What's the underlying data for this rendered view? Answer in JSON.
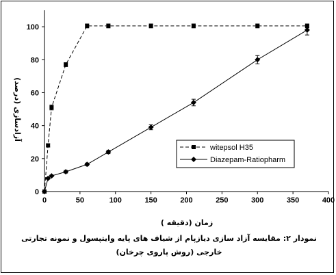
{
  "chart_data": {
    "type": "line",
    "xlabel": "زمان (دقیقه )",
    "ylabel": "آزادسازی (درصد)",
    "xlim": [
      0,
      400
    ],
    "ylim": [
      0,
      110
    ],
    "xticks": [
      0,
      50,
      100,
      150,
      200,
      250,
      300,
      350,
      400
    ],
    "yticks": [
      0,
      20,
      40,
      60,
      80,
      100
    ],
    "grid": false,
    "legend_position": "right",
    "series": [
      {
        "name": "witepsol H35",
        "color": "#000000",
        "line_style": "dashed",
        "marker": "square",
        "x": [
          0,
          5,
          10,
          30,
          60,
          90,
          150,
          210,
          300,
          370
        ],
        "y": [
          0,
          28,
          51,
          77,
          100.5,
          100.5,
          100.5,
          100.5,
          100.5,
          100.5
        ],
        "err": [
          0,
          1,
          1.5,
          1.2,
          1.2,
          1.2,
          1.2,
          1.2,
          1.2,
          1.2
        ]
      },
      {
        "name": "Diazepam-Ratiopharm",
        "color": "#000000",
        "line_style": "solid",
        "marker": "diamond",
        "x": [
          0,
          5,
          10,
          30,
          60,
          90,
          150,
          210,
          300,
          370
        ],
        "y": [
          0,
          8,
          9.5,
          12,
          16.5,
          24,
          39,
          54,
          80,
          98
        ],
        "err": [
          0,
          0.5,
          0.5,
          0.8,
          0.8,
          1,
          1.5,
          2,
          2.5,
          3
        ]
      }
    ],
    "caption_line1": "نمودار ۲: مقایسه آزاد سازی دیازپام از شیاف های پایه وایتپسول و نمونه تجارتی",
    "caption_line2": "خارجی (روش پاروی چرخان)"
  }
}
